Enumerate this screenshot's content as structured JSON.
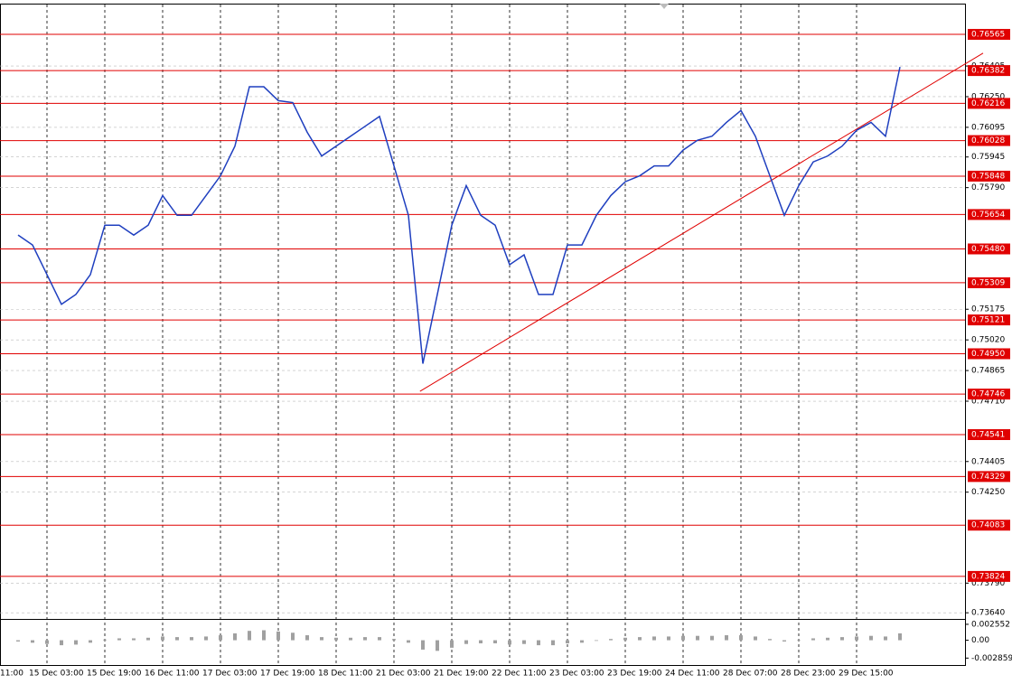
{
  "chart_data": [
    {
      "type": "line",
      "color": "#1f3fbf",
      "categories": [
        "11:00",
        null,
        null,
        null,
        "15 Dec 03:00",
        null,
        null,
        null,
        "15 Dec 19:00",
        null,
        null,
        null,
        "16 Dec 11:00",
        null,
        null,
        null,
        "17 Dec 03:00",
        null,
        null,
        null,
        "17 Dec 19:00",
        null,
        null,
        null,
        "18 Dec 11:00",
        null,
        null,
        null,
        "21 Dec 03:00",
        null,
        null,
        null,
        "21 Dec 19:00",
        null,
        null,
        null,
        "22 Dec 11:00",
        null,
        null,
        null,
        "23 Dec 03:00",
        null,
        null,
        null,
        "23 Dec 19:00",
        null,
        null,
        null,
        "24 Dec 11:00",
        null,
        null,
        null,
        "28 Dec 07:00",
        null,
        null,
        null,
        "28 Dec 23:00",
        null,
        null,
        null,
        "29 Dec 15:00",
        null,
        null,
        null
      ],
      "values": [
        null,
        null,
        0.7555,
        0.755,
        0.7535,
        0.752,
        0.7525,
        0.7535,
        0.756,
        0.756,
        0.7555,
        0.756,
        0.7575,
        0.7565,
        0.7565,
        0.7575,
        0.7585,
        0.76,
        0.763,
        0.763,
        0.7623,
        0.7622,
        0.7607,
        0.7595,
        0.76,
        0.7605,
        0.761,
        0.7615,
        0.759,
        0.7565,
        0.749,
        0.7525,
        0.756,
        0.758,
        0.7565,
        0.756,
        0.754,
        0.7545,
        0.7525,
        0.7525,
        0.755,
        0.755,
        0.7565,
        0.7575,
        0.7582,
        0.7585,
        0.759,
        0.759,
        0.7598,
        0.7603,
        0.7605,
        0.7612,
        0.7618,
        0.7605,
        0.7585,
        0.7565,
        0.758,
        0.7592,
        0.7595,
        0.76,
        0.7608,
        0.7612,
        0.7605,
        0.764
      ],
      "ylim": [
        0.73618,
        0.76716
      ],
      "yticks": [
        0.76405,
        {
          "value": 0.7625,
          "label": "0.76250"
        },
        0.76095,
        0.75945,
        {
          "value": 0.7579,
          "label": "0.75790"
        },
        0.75175,
        {
          "value": 0.7502,
          "label": "0.75020"
        },
        0.74865,
        {
          "value": 0.7471,
          "label": "0.74710"
        },
        0.74405,
        {
          "value": 0.7425,
          "label": "0.74250"
        },
        {
          "value": 0.7379,
          "label": "0.73790"
        },
        {
          "value": 0.7364,
          "label": "0.73640"
        }
      ],
      "grid": true,
      "levels": {
        "color": "#e00000",
        "values": [
          0.76565,
          0.76382,
          0.76216,
          0.76028,
          0.75848,
          0.75654,
          {
            "value": 0.7548,
            "label": "0.75480"
          },
          0.75309,
          0.75121,
          {
            "value": 0.7495,
            "label": "0.74950"
          },
          0.74746,
          0.74541,
          0.74329,
          0.74083,
          0.73824
        ]
      },
      "trendline": {
        "color": "#e00000",
        "x": [
          29.8,
          68.75
        ],
        "values": [
          0.7476,
          0.7647
        ]
      }
    },
    {
      "type": "bar",
      "color": "#a0a0a0",
      "values": [
        null,
        null,
        -0.0002,
        -0.0004,
        -0.0006,
        -0.0008,
        -0.0007,
        -0.0004,
        0.0001,
        0.0003,
        0.0003,
        0.0004,
        0.0006,
        0.0005,
        0.0005,
        0.0006,
        0.0008,
        0.0011,
        0.0015,
        0.0016,
        0.0014,
        0.0012,
        0.0008,
        0.0005,
        0.0004,
        0.0004,
        0.0005,
        0.0005,
        0.0002,
        -0.0004,
        -0.0015,
        -0.0017,
        -0.0012,
        -0.0006,
        -0.0005,
        -0.0005,
        -0.0007,
        -0.0006,
        -0.0008,
        -0.0008,
        -0.0005,
        -0.0004,
        -0.0001,
        0.0002,
        0.0004,
        0.0005,
        0.0006,
        0.0006,
        0.0007,
        0.0007,
        0.0007,
        0.0008,
        0.0008,
        0.0006,
        0.0002,
        -0.0002,
        0,
        0.0003,
        0.0004,
        0.0005,
        0.0006,
        0.0007,
        0.0006,
        0.0011
      ],
      "ylim": [
        -0.00397,
        0.00312
      ],
      "yticks": [
        0.002552,
        {
          "value": 0,
          "label": "0.00"
        },
        -0.002859
      ]
    }
  ]
}
